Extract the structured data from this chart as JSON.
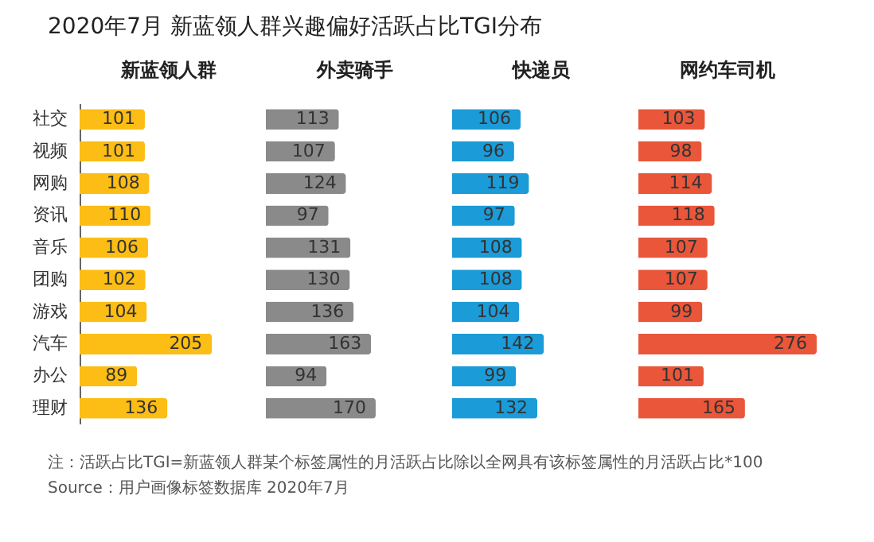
{
  "chart_data": [
    {
      "type": "bar",
      "orientation": "horizontal",
      "title": "2020年7月 新蓝领人群兴趣偏好活跃占比TGI分布",
      "subtitle": "新蓝领人群",
      "categories": [
        "社交",
        "视频",
        "网购",
        "资讯",
        "音乐",
        "团购",
        "游戏",
        "汽车",
        "办公",
        "理财"
      ],
      "color": "#fcbd14",
      "values": [
        101,
        101,
        108,
        110,
        106,
        102,
        104,
        205,
        89,
        136
      ],
      "data_labels": true
    },
    {
      "type": "bar",
      "orientation": "horizontal",
      "title": "外卖骑手",
      "color": "#8a8a8a",
      "values": [
        113,
        107,
        124,
        97,
        131,
        130,
        136,
        163,
        94,
        170
      ],
      "data_labels": true
    },
    {
      "type": "bar",
      "orientation": "horizontal",
      "title": "快递员",
      "color": "#1b9bd7",
      "values": [
        106,
        96,
        119,
        97,
        108,
        108,
        104,
        142,
        99,
        132
      ],
      "data_labels": true
    },
    {
      "type": "bar",
      "orientation": "horizontal",
      "title": "网约车司机",
      "color": "#e9563a",
      "values": [
        103,
        98,
        114,
        118,
        107,
        107,
        99,
        276,
        101,
        165
      ],
      "data_labels": true,
      "annotations": [
        "注：活跃占比TGI=新蓝领人群某个标签属性的月活跃占比除以全网具有该标签属性的月活跃占比*100",
        "Source：用户画像标签数据库 2020年7月"
      ]
    }
  ]
}
